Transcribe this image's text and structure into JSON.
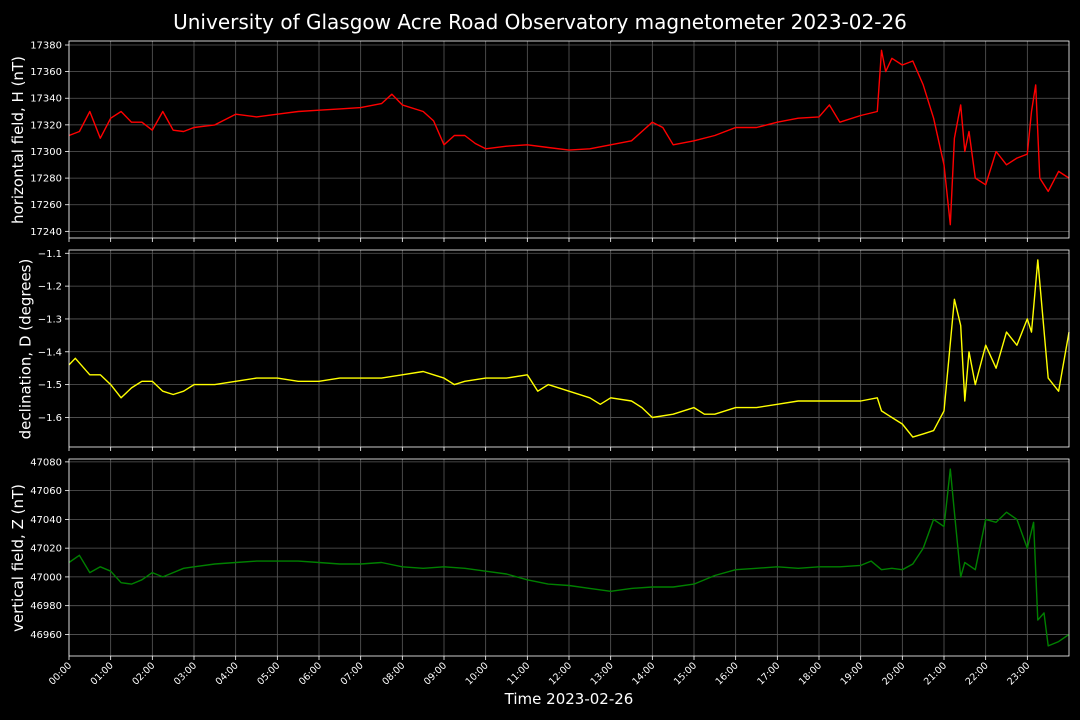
{
  "figure": {
    "title": "University of Glasgow Acre Road Observatory magnetometer 2023-02-26",
    "xlabel": "Time 2023-02-26",
    "background": "#000000",
    "grid_color": "#5a5a5a"
  },
  "chart_data": [
    {
      "type": "line",
      "ylabel": "horizontal field, H (nT)",
      "color": "#ff0000",
      "ylim": [
        17235,
        17383
      ],
      "yticks": [
        17240,
        17260,
        17280,
        17300,
        17320,
        17340,
        17360,
        17380
      ],
      "xlim": [
        0,
        24
      ],
      "xticks": [
        "00:00",
        "01:00",
        "02:00",
        "03:00",
        "04:00",
        "05:00",
        "06:00",
        "07:00",
        "08:00",
        "09:00",
        "10:00",
        "11:00",
        "12:00",
        "13:00",
        "14:00",
        "15:00",
        "16:00",
        "17:00",
        "18:00",
        "19:00",
        "20:00",
        "21:00",
        "22:00",
        "23:00"
      ],
      "grid": true,
      "x": [
        0,
        0.25,
        0.5,
        0.75,
        1.0,
        1.25,
        1.5,
        1.75,
        2.0,
        2.25,
        2.5,
        2.75,
        3.0,
        3.5,
        4.0,
        4.5,
        5.0,
        5.5,
        6.0,
        6.5,
        7.0,
        7.5,
        7.75,
        8.0,
        8.5,
        8.75,
        9.0,
        9.25,
        9.5,
        9.75,
        10.0,
        10.5,
        11.0,
        11.5,
        12.0,
        12.5,
        13.0,
        13.5,
        14.0,
        14.25,
        14.5,
        15.0,
        15.5,
        16.0,
        16.5,
        17.0,
        17.5,
        18.0,
        18.25,
        18.5,
        19.0,
        19.4,
        19.5,
        19.6,
        19.75,
        20.0,
        20.25,
        20.5,
        20.75,
        21.0,
        21.15,
        21.25,
        21.4,
        21.5,
        21.6,
        21.75,
        22.0,
        22.25,
        22.5,
        22.75,
        23.0,
        23.1,
        23.2,
        23.3,
        23.5,
        23.75,
        24.0
      ],
      "y": [
        17312,
        17315,
        17330,
        17310,
        17325,
        17330,
        17322,
        17322,
        17316,
        17330,
        17316,
        17315,
        17318,
        17320,
        17328,
        17326,
        17328,
        17330,
        17331,
        17332,
        17333,
        17336,
        17343,
        17335,
        17330,
        17323,
        17305,
        17312,
        17312,
        17306,
        17302,
        17304,
        17305,
        17303,
        17301,
        17302,
        17305,
        17308,
        17322,
        17318,
        17305,
        17308,
        17312,
        17318,
        17318,
        17322,
        17325,
        17326,
        17335,
        17322,
        17327,
        17330,
        17376,
        17360,
        17370,
        17365,
        17368,
        17350,
        17325,
        17290,
        17245,
        17310,
        17335,
        17300,
        17315,
        17280,
        17275,
        17300,
        17290,
        17295,
        17298,
        17330,
        17350,
        17280,
        17270,
        17285,
        17280
      ]
    },
    {
      "type": "line",
      "ylabel": "declination, D (degrees)",
      "color": "#ffff00",
      "ylim": [
        -1.69,
        -1.09
      ],
      "yticks": [
        -1.6,
        -1.5,
        -1.4,
        -1.3,
        -1.2,
        -1.1
      ],
      "ytick_labels": [
        "−1.6",
        "−1.5",
        "−1.4",
        "−1.3",
        "−1.2",
        "−1.1"
      ],
      "xlim": [
        0,
        24
      ],
      "grid": true,
      "x": [
        0,
        0.15,
        0.5,
        0.75,
        1.0,
        1.25,
        1.5,
        1.75,
        2.0,
        2.25,
        2.5,
        2.75,
        3.0,
        3.5,
        4.0,
        4.5,
        5.0,
        5.5,
        6.0,
        6.5,
        7.0,
        7.5,
        8.0,
        8.5,
        8.75,
        9.0,
        9.25,
        9.5,
        10.0,
        10.5,
        11.0,
        11.25,
        11.5,
        12.0,
        12.5,
        12.75,
        13.0,
        13.5,
        13.75,
        14.0,
        14.5,
        15.0,
        15.25,
        15.5,
        16.0,
        16.5,
        17.0,
        17.5,
        18.0,
        18.5,
        19.0,
        19.4,
        19.5,
        19.75,
        20.0,
        20.25,
        20.5,
        20.75,
        21.0,
        21.25,
        21.4,
        21.5,
        21.6,
        21.75,
        22.0,
        22.25,
        22.5,
        22.75,
        23.0,
        23.1,
        23.25,
        23.5,
        23.75,
        24.0
      ],
      "y": [
        -1.44,
        -1.42,
        -1.47,
        -1.47,
        -1.5,
        -1.54,
        -1.51,
        -1.49,
        -1.49,
        -1.52,
        -1.53,
        -1.52,
        -1.5,
        -1.5,
        -1.49,
        -1.48,
        -1.48,
        -1.49,
        -1.49,
        -1.48,
        -1.48,
        -1.48,
        -1.47,
        -1.46,
        -1.47,
        -1.48,
        -1.5,
        -1.49,
        -1.48,
        -1.48,
        -1.47,
        -1.52,
        -1.5,
        -1.52,
        -1.54,
        -1.56,
        -1.54,
        -1.55,
        -1.57,
        -1.6,
        -1.59,
        -1.57,
        -1.59,
        -1.59,
        -1.57,
        -1.57,
        -1.56,
        -1.55,
        -1.55,
        -1.55,
        -1.55,
        -1.54,
        -1.58,
        -1.6,
        -1.62,
        -1.66,
        -1.65,
        -1.64,
        -1.58,
        -1.24,
        -1.32,
        -1.55,
        -1.4,
        -1.5,
        -1.38,
        -1.45,
        -1.34,
        -1.38,
        -1.3,
        -1.34,
        -1.12,
        -1.48,
        -1.52,
        -1.34
      ]
    },
    {
      "type": "line",
      "ylabel": "vertical field, Z (nT)",
      "color": "#008000",
      "ylim": [
        46945,
        47082
      ],
      "yticks": [
        46960,
        46980,
        47000,
        47020,
        47040,
        47060,
        47080
      ],
      "xlim": [
        0,
        24
      ],
      "grid": true,
      "x": [
        0,
        0.25,
        0.5,
        0.75,
        1.0,
        1.25,
        1.5,
        1.75,
        2.0,
        2.25,
        2.5,
        2.75,
        3.0,
        3.5,
        4.0,
        4.5,
        5.0,
        5.5,
        6.0,
        6.5,
        7.0,
        7.5,
        8.0,
        8.5,
        9.0,
        9.5,
        10.0,
        10.5,
        11.0,
        11.5,
        12.0,
        12.5,
        13.0,
        13.5,
        14.0,
        14.5,
        15.0,
        15.5,
        16.0,
        16.5,
        17.0,
        17.5,
        18.0,
        18.5,
        19.0,
        19.25,
        19.5,
        19.75,
        20.0,
        20.25,
        20.5,
        20.75,
        21.0,
        21.15,
        21.25,
        21.4,
        21.5,
        21.75,
        22.0,
        22.25,
        22.5,
        22.75,
        23.0,
        23.15,
        23.25,
        23.4,
        23.5,
        23.75,
        24.0
      ],
      "y": [
        47010,
        47015,
        47003,
        47007,
        47004,
        46996,
        46995,
        46998,
        47003,
        47000,
        47003,
        47006,
        47007,
        47009,
        47010,
        47011,
        47011,
        47011,
        47010,
        47009,
        47009,
        47010,
        47007,
        47006,
        47007,
        47006,
        47004,
        47002,
        46998,
        46995,
        46994,
        46992,
        46990,
        46992,
        46993,
        46993,
        46995,
        47001,
        47005,
        47006,
        47007,
        47006,
        47007,
        47007,
        47008,
        47011,
        47005,
        47006,
        47005,
        47009,
        47020,
        47040,
        47035,
        47075,
        47045,
        47000,
        47010,
        47005,
        47040,
        47038,
        47045,
        47040,
        47020,
        47038,
        46970,
        46975,
        46952,
        46955,
        46960
      ]
    }
  ]
}
